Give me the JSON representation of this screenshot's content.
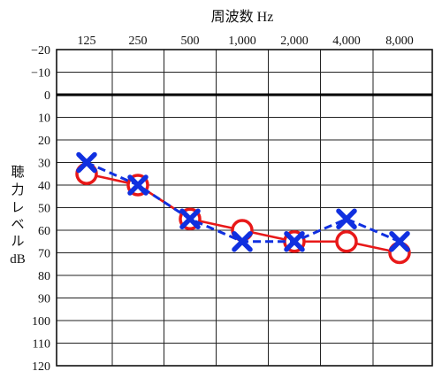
{
  "chart_data": {
    "type": "line",
    "title": "周波数 Hz",
    "ylabel_lines": [
      "聴",
      "力",
      "レ",
      "ベ",
      "ル",
      "dB"
    ],
    "categories": [
      "125",
      "250",
      "500",
      "1,000",
      "2,000",
      "4,000",
      "8,000"
    ],
    "y_ticks": [
      "−20",
      "−10",
      "0",
      "10",
      "20",
      "30",
      "40",
      "50",
      "60",
      "70",
      "80",
      "90",
      "100",
      "110",
      "120"
    ],
    "ylim": [
      -20,
      120
    ],
    "y_inverted": true,
    "grid": true,
    "reference_line_y": 0,
    "series": [
      {
        "marker": "circle",
        "line": "solid",
        "color": "#e81818",
        "values": [
          35,
          40,
          55,
          60,
          65,
          65,
          70
        ]
      },
      {
        "marker": "x",
        "line": "dashed",
        "color": "#1030e0",
        "values": [
          30,
          40,
          55,
          65,
          65,
          55,
          65
        ]
      }
    ]
  }
}
